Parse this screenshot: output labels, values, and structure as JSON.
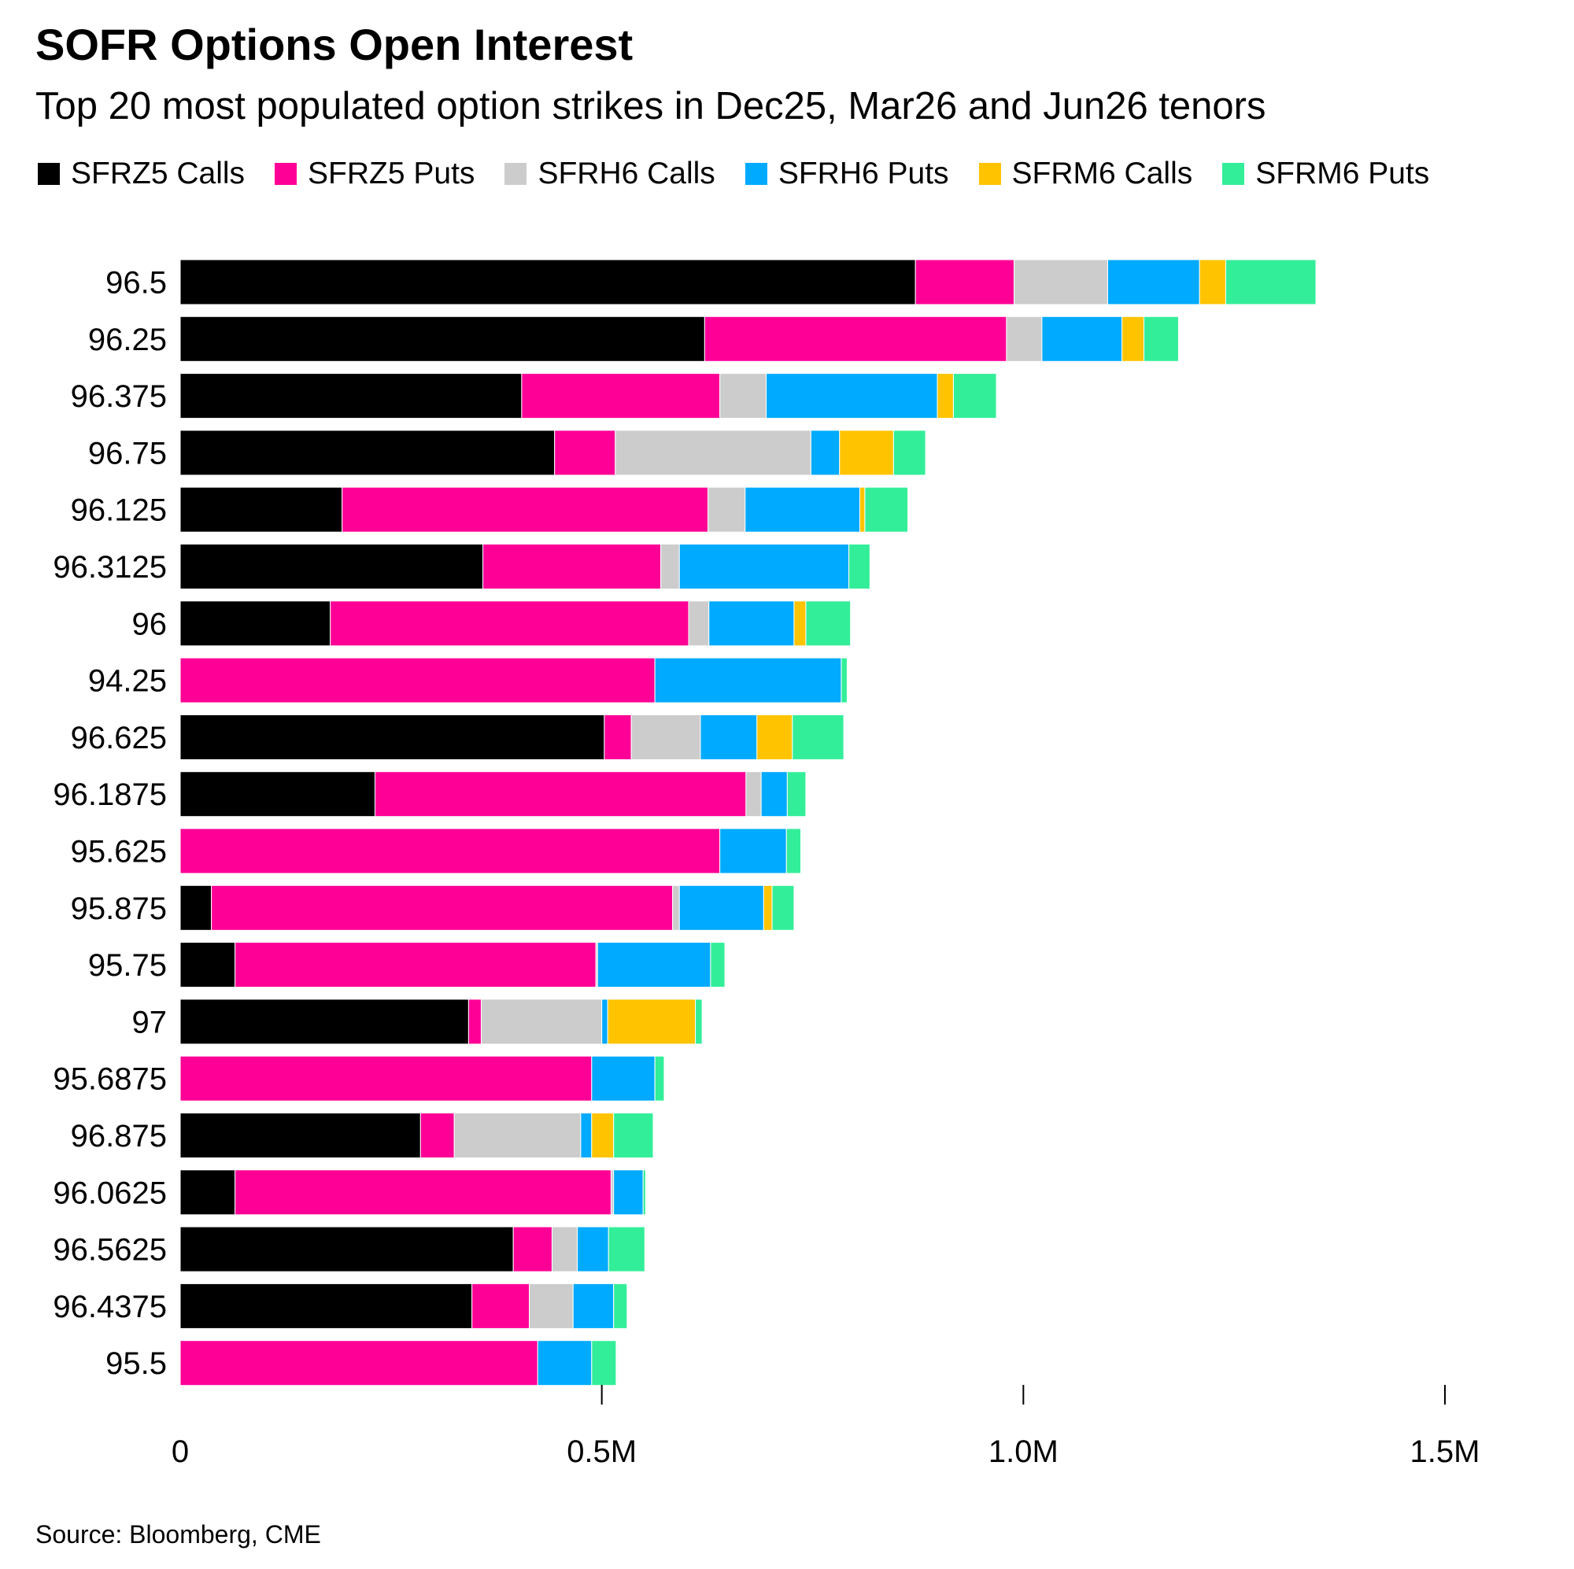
{
  "chart_data": {
    "type": "bar",
    "orientation": "horizontal",
    "stacked": true,
    "title": "SOFR Options Open Interest",
    "subtitle": "Top 20 most populated option strikes in Dec25, Mar26 and Jun26 tenors",
    "xlabel": "",
    "ylabel": "",
    "xlim": [
      0,
      1500000
    ],
    "x_ticks": [
      0,
      500000,
      1000000,
      1500000
    ],
    "x_tick_labels": [
      "0",
      "0.5M",
      "1.0M",
      "1.5M"
    ],
    "legend_position": "top",
    "grid": false,
    "categories": [
      "96.5",
      "96.25",
      "96.375",
      "96.75",
      "96.125",
      "96.3125",
      "96",
      "94.25",
      "96.625",
      "96.1875",
      "95.625",
      "95.875",
      "95.75",
      "97",
      "95.6875",
      "96.875",
      "96.0625",
      "96.5625",
      "96.4375",
      "95.5"
    ],
    "series": [
      {
        "name": "SFRZ5 Calls",
        "color": "#000000",
        "values": [
          872000,
          622000,
          405000,
          444000,
          192000,
          359000,
          178000,
          0,
          503000,
          231000,
          0,
          37000,
          65000,
          342000,
          0,
          285000,
          65000,
          395000,
          346000,
          0
        ]
      },
      {
        "name": "SFRZ5 Puts",
        "color": "#ff0096",
        "values": [
          117000,
          358000,
          235000,
          72000,
          434000,
          211000,
          425000,
          563000,
          32000,
          440000,
          640000,
          547000,
          428000,
          15000,
          488000,
          40000,
          446000,
          46000,
          68000,
          424000
        ]
      },
      {
        "name": "SFRH6 Calls",
        "color": "#cccccc",
        "values": [
          111000,
          42000,
          55000,
          232000,
          44000,
          22000,
          24000,
          0,
          82000,
          18000,
          0,
          8000,
          2000,
          143000,
          0,
          150000,
          3000,
          30000,
          52000,
          0
        ]
      },
      {
        "name": "SFRH6 Puts",
        "color": "#00aaff",
        "values": [
          109000,
          95000,
          203000,
          34000,
          136000,
          201000,
          101000,
          221000,
          67000,
          31000,
          79000,
          100000,
          134000,
          7000,
          75000,
          13000,
          35000,
          37000,
          48000,
          64000
        ]
      },
      {
        "name": "SFRM6 Calls",
        "color": "#ffc300",
        "values": [
          31000,
          26000,
          19000,
          64000,
          6000,
          0,
          14000,
          0,
          42000,
          0,
          0,
          10000,
          0,
          104000,
          0,
          26000,
          0,
          0,
          0,
          0
        ]
      },
      {
        "name": "SFRM6 Puts",
        "color": "#33ee99",
        "values": [
          107000,
          41000,
          51000,
          38000,
          51000,
          25000,
          53000,
          7000,
          61000,
          22000,
          17000,
          26000,
          17000,
          8000,
          11000,
          47000,
          3000,
          43000,
          16000,
          29000
        ]
      }
    ]
  },
  "source": "Source: Bloomberg, CME"
}
